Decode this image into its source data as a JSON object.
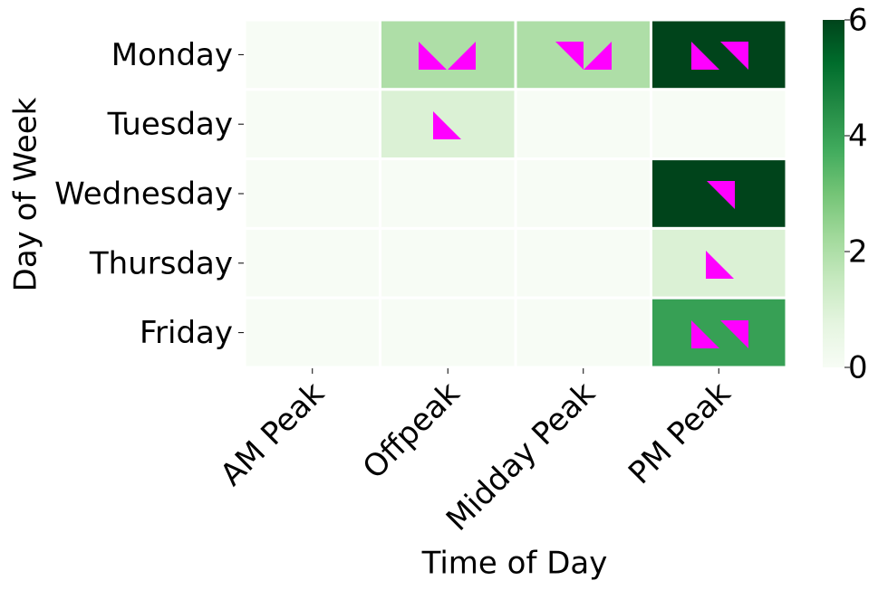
{
  "chart_data": {
    "type": "heatmap",
    "x_label": "Time of Day",
    "y_label": "Day of Week",
    "x_categories": [
      "AM Peak",
      "Offpeak",
      "Midday Peak",
      "PM Peak"
    ],
    "y_categories": [
      "Monday",
      "Tuesday",
      "Wednesday",
      "Thursday",
      "Friday"
    ],
    "values": [
      [
        0,
        2,
        2,
        6
      ],
      [
        0,
        1,
        0,
        0
      ],
      [
        0,
        0,
        0,
        6
      ],
      [
        0,
        0,
        0,
        1
      ],
      [
        0,
        0,
        0,
        4
      ]
    ],
    "clim": [
      0,
      6
    ],
    "cticks": [
      0,
      2,
      4,
      6
    ],
    "colormap": [
      "#f7fcf5",
      "#e5f5e0",
      "#c7e9c0",
      "#a1d99b",
      "#74c476",
      "#41ab5d",
      "#238b45",
      "#006d2c",
      "#00441b"
    ]
  }
}
